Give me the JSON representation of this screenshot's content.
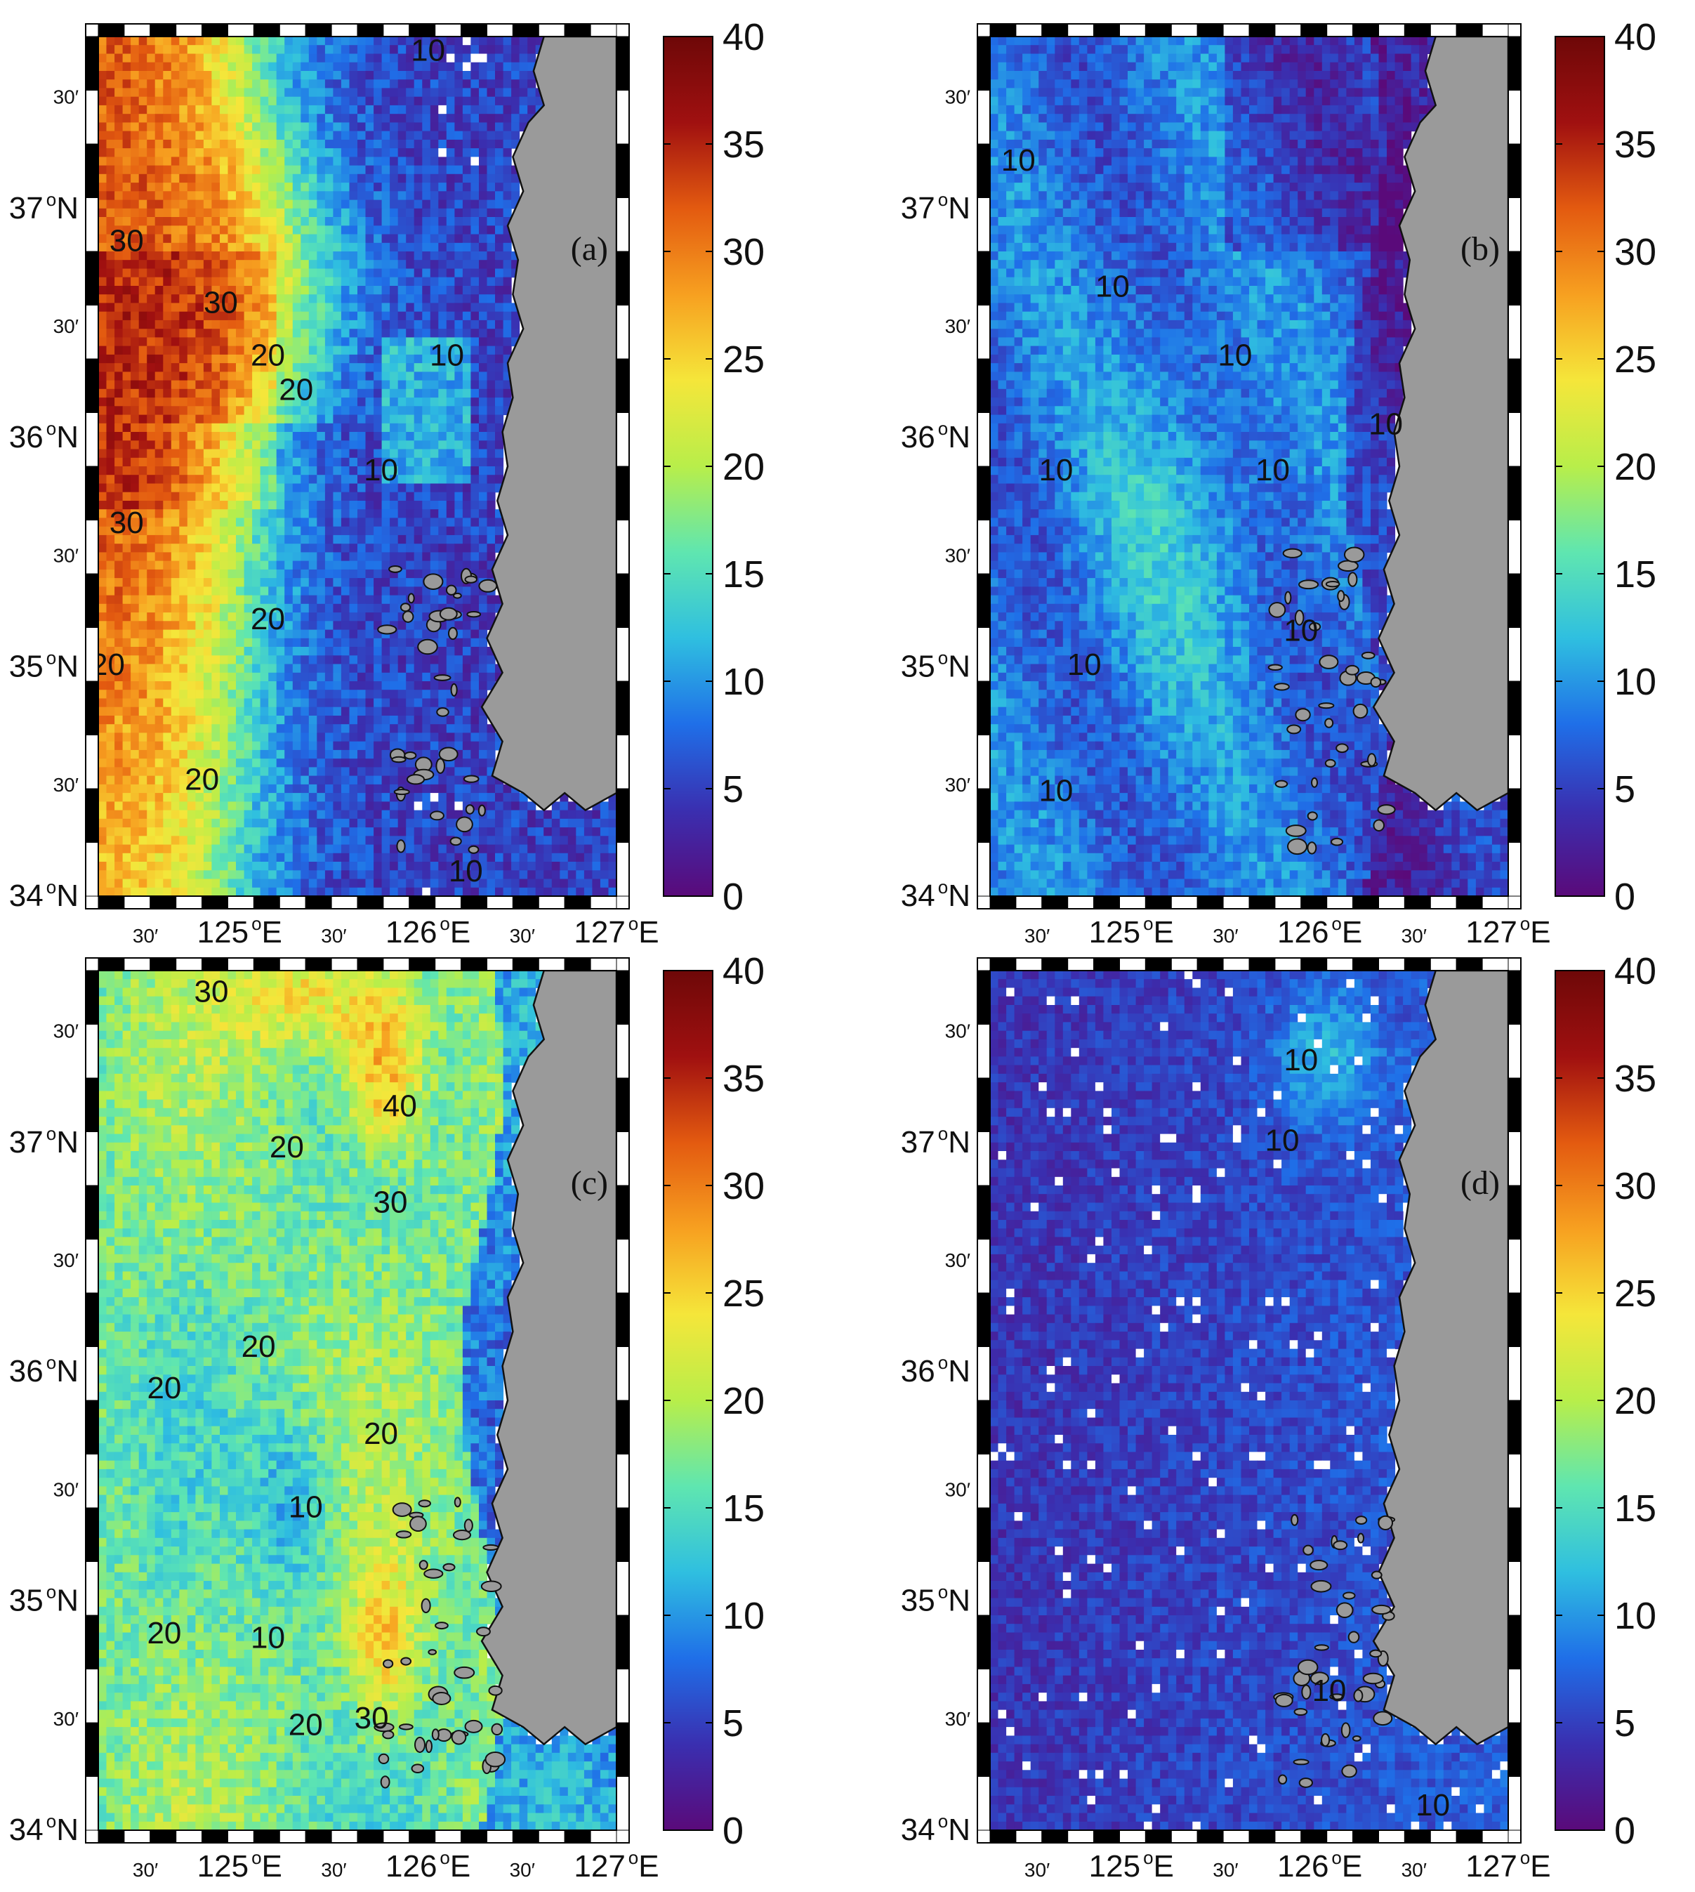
{
  "figure": {
    "lat_ticks": [
      {
        "lat": 37.5,
        "label": "30′"
      },
      {
        "lat": 37.0,
        "label": "37",
        "deg": "o",
        "hemi": "N"
      },
      {
        "lat": 36.5,
        "label": "30′"
      },
      {
        "lat": 36.0,
        "label": "36",
        "deg": "o",
        "hemi": "N"
      },
      {
        "lat": 35.5,
        "label": "30′"
      },
      {
        "lat": 35.0,
        "label": "35",
        "deg": "o",
        "hemi": "N"
      },
      {
        "lat": 34.5,
        "label": "30′"
      },
      {
        "lat": 34.0,
        "label": "34",
        "deg": "o",
        "hemi": "N"
      }
    ],
    "lon_ticks": [
      {
        "lon": 124.5,
        "label": "30′"
      },
      {
        "lon": 125.0,
        "label": "125",
        "deg": "o",
        "hemi": "E"
      },
      {
        "lon": 125.5,
        "label": "30′"
      },
      {
        "lon": 126.0,
        "label": "126",
        "deg": "o",
        "hemi": "E"
      },
      {
        "lon": 126.5,
        "label": "30′"
      },
      {
        "lon": 127.0,
        "label": "127",
        "deg": "o",
        "hemi": "E"
      }
    ],
    "colorbar_ticks": [
      "40",
      "35",
      "30",
      "25",
      "20",
      "15",
      "10",
      "5",
      "0"
    ],
    "colors": {
      "land": "#9a9a9a",
      "contour": "#ffffff",
      "colormap": [
        "#5a0a7a",
        "#3a2fb0",
        "#1f6fe8",
        "#2fbfe0",
        "#5fe6b0",
        "#b8ee4a",
        "#f5e63a",
        "#f7a020",
        "#e35a10",
        "#a01010",
        "#6e0808"
      ]
    }
  },
  "chart_data": [
    {
      "type": "heatmap",
      "panel_label": "(a)",
      "lon_range": [
        124.25,
        127.0
      ],
      "lat_range": [
        34.0,
        37.75
      ],
      "value_range": [
        0,
        40
      ],
      "contour_levels": [
        10,
        20,
        30
      ],
      "contour_labels": [
        {
          "text": "10",
          "lon": 126.0,
          "lat": 37.68
        },
        {
          "text": "30",
          "lon": 124.4,
          "lat": 36.85
        },
        {
          "text": "30",
          "lon": 124.9,
          "lat": 36.58
        },
        {
          "text": "20",
          "lon": 125.15,
          "lat": 36.35
        },
        {
          "text": "20",
          "lon": 125.3,
          "lat": 36.2
        },
        {
          "text": "10",
          "lon": 126.1,
          "lat": 36.35
        },
        {
          "text": "10",
          "lon": 125.75,
          "lat": 35.85
        },
        {
          "text": "30",
          "lon": 124.4,
          "lat": 35.62
        },
        {
          "text": "20",
          "lon": 125.15,
          "lat": 35.2
        },
        {
          "text": "20",
          "lon": 124.3,
          "lat": 35.0
        },
        {
          "text": "20",
          "lon": 124.8,
          "lat": 34.5
        },
        {
          "text": "10",
          "lon": 126.2,
          "lat": 34.1
        }
      ]
    },
    {
      "type": "heatmap",
      "panel_label": "(b)",
      "lon_range": [
        124.25,
        127.0
      ],
      "lat_range": [
        34.0,
        37.75
      ],
      "value_range": [
        0,
        40
      ],
      "contour_levels": [
        10
      ],
      "contour_labels": [
        {
          "text": "10",
          "lon": 124.4,
          "lat": 37.2
        },
        {
          "text": "10",
          "lon": 124.9,
          "lat": 36.65
        },
        {
          "text": "10",
          "lon": 125.55,
          "lat": 36.35
        },
        {
          "text": "10",
          "lon": 126.35,
          "lat": 36.05
        },
        {
          "text": "10",
          "lon": 124.6,
          "lat": 35.85
        },
        {
          "text": "10",
          "lon": 125.75,
          "lat": 35.85
        },
        {
          "text": "10",
          "lon": 125.9,
          "lat": 35.15
        },
        {
          "text": "10",
          "lon": 124.75,
          "lat": 35.0
        },
        {
          "text": "10",
          "lon": 124.6,
          "lat": 34.45
        }
      ]
    },
    {
      "type": "heatmap",
      "panel_label": "(c)",
      "lon_range": [
        124.25,
        127.0
      ],
      "lat_range": [
        34.0,
        37.75
      ],
      "value_range": [
        0,
        40
      ],
      "contour_levels": [
        10,
        20,
        30,
        40
      ],
      "contour_labels": [
        {
          "text": "30",
          "lon": 124.85,
          "lat": 37.65
        },
        {
          "text": "40",
          "lon": 125.85,
          "lat": 37.15
        },
        {
          "text": "20",
          "lon": 125.25,
          "lat": 36.97
        },
        {
          "text": "30",
          "lon": 125.8,
          "lat": 36.73
        },
        {
          "text": "20",
          "lon": 125.1,
          "lat": 36.1
        },
        {
          "text": "20",
          "lon": 124.6,
          "lat": 35.92
        },
        {
          "text": "20",
          "lon": 125.75,
          "lat": 35.72
        },
        {
          "text": "10",
          "lon": 125.35,
          "lat": 35.4
        },
        {
          "text": "20",
          "lon": 124.6,
          "lat": 34.85
        },
        {
          "text": "10",
          "lon": 125.15,
          "lat": 34.83
        },
        {
          "text": "20",
          "lon": 125.35,
          "lat": 34.45
        },
        {
          "text": "30",
          "lon": 125.7,
          "lat": 34.48
        }
      ]
    },
    {
      "type": "heatmap",
      "panel_label": "(d)",
      "lon_range": [
        124.25,
        127.0
      ],
      "lat_range": [
        34.0,
        37.75
      ],
      "value_range": [
        0,
        40
      ],
      "contour_levels": [
        10
      ],
      "contour_labels": [
        {
          "text": "10",
          "lon": 125.9,
          "lat": 37.35
        },
        {
          "text": "10",
          "lon": 125.8,
          "lat": 37.0
        },
        {
          "text": "10",
          "lon": 126.05,
          "lat": 34.6
        },
        {
          "text": "10",
          "lon": 126.6,
          "lat": 34.1
        }
      ]
    }
  ]
}
